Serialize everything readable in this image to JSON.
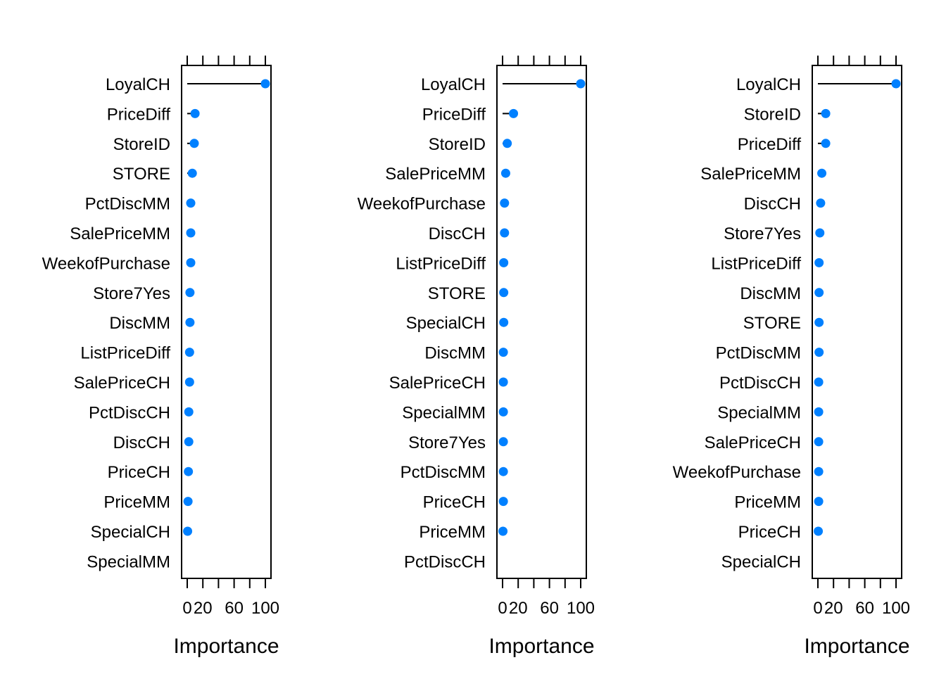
{
  "colors": {
    "point": "#0080ff",
    "axis": "#000000",
    "background": "#ffffff"
  },
  "chart_data": [
    {
      "type": "dot",
      "xlabel": "Importance",
      "xlim": [
        0,
        100
      ],
      "x_ticks": [
        0,
        20,
        40,
        60,
        80,
        100
      ],
      "x_tick_labels": [
        "0",
        "20",
        "",
        "60",
        "",
        "100"
      ],
      "grid": false,
      "legend": "none",
      "variables": [
        "LoyalCH",
        "PriceDiff",
        "StoreID",
        "STORE",
        "PctDiscMM",
        "SalePriceMM",
        "WeekofPurchase",
        "Store7Yes",
        "DiscMM",
        "ListPriceDiff",
        "SalePriceCH",
        "PctDiscCH",
        "DiscCH",
        "PriceCH",
        "PriceMM",
        "SpecialCH",
        "SpecialMM"
      ],
      "values": [
        100,
        10,
        9,
        6.5,
        4.5,
        4.5,
        4.5,
        3.5,
        3.5,
        3,
        3,
        2,
        2,
        1.5,
        1,
        0.5,
        0
      ]
    },
    {
      "type": "dot",
      "xlabel": "Importance",
      "xlim": [
        0,
        100
      ],
      "x_ticks": [
        0,
        20,
        40,
        60,
        80,
        100
      ],
      "x_tick_labels": [
        "0",
        "20",
        "",
        "60",
        "",
        "100"
      ],
      "grid": false,
      "legend": "none",
      "variables": [
        "LoyalCH",
        "PriceDiff",
        "StoreID",
        "SalePriceMM",
        "WeekofPurchase",
        "DiscCH",
        "ListPriceDiff",
        "STORE",
        "SpecialCH",
        "DiscMM",
        "SalePriceCH",
        "SpecialMM",
        "Store7Yes",
        "PctDiscMM",
        "PriceCH",
        "PriceMM",
        "PctDiscCH"
      ],
      "values": [
        100,
        14,
        6,
        4,
        2.5,
        2.5,
        1.5,
        1.5,
        1.5,
        1,
        1,
        1,
        1,
        1,
        1,
        0.5,
        0
      ]
    },
    {
      "type": "dot",
      "xlabel": "Importance",
      "xlim": [
        0,
        100
      ],
      "x_ticks": [
        0,
        20,
        40,
        60,
        80,
        100
      ],
      "x_tick_labels": [
        "0",
        "20",
        "",
        "60",
        "",
        "100"
      ],
      "grid": false,
      "legend": "none",
      "variables": [
        "LoyalCH",
        "StoreID",
        "PriceDiff",
        "SalePriceMM",
        "DiscCH",
        "Store7Yes",
        "ListPriceDiff",
        "DiscMM",
        "STORE",
        "PctDiscMM",
        "PctDiscCH",
        "SpecialMM",
        "SalePriceCH",
        "WeekofPurchase",
        "PriceMM",
        "PriceCH",
        "SpecialCH"
      ],
      "values": [
        100,
        10,
        10,
        5,
        3.5,
        2.5,
        1.5,
        1.5,
        1.5,
        1.5,
        1,
        1,
        1,
        1,
        1,
        0.5,
        0
      ]
    }
  ]
}
